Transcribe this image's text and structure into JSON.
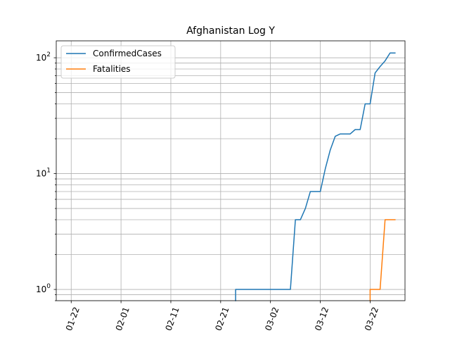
{
  "chart_data": {
    "type": "line",
    "title": "Afghanistan Log Y",
    "xlabel": "",
    "ylabel": "",
    "yscale": "log",
    "grid": "on (major and minor)",
    "legend_position": "upper-left",
    "x_ticks": [
      "01-22",
      "02-01",
      "02-11",
      "02-21",
      "03-02",
      "03-12",
      "03-22"
    ],
    "y_ticks": [
      {
        "value": 1,
        "label": "10^0"
      },
      {
        "value": 10,
        "label": "10^1"
      },
      {
        "value": 100,
        "label": "10^2"
      }
    ],
    "xlim": [
      "2020-01-19",
      "2020-03-29"
    ],
    "ylim": [
      0.8,
      140
    ],
    "series": [
      {
        "name": "ConfirmedCases",
        "color": "#1f77b4",
        "x": [
          "2020-02-24",
          "2020-02-25",
          "2020-02-26",
          "2020-02-27",
          "2020-02-28",
          "2020-02-29",
          "2020-03-01",
          "2020-03-02",
          "2020-03-03",
          "2020-03-04",
          "2020-03-05",
          "2020-03-06",
          "2020-03-07",
          "2020-03-08",
          "2020-03-09",
          "2020-03-10",
          "2020-03-11",
          "2020-03-12",
          "2020-03-13",
          "2020-03-14",
          "2020-03-15",
          "2020-03-16",
          "2020-03-17",
          "2020-03-18",
          "2020-03-19",
          "2020-03-20",
          "2020-03-21",
          "2020-03-22",
          "2020-03-23",
          "2020-03-24",
          "2020-03-25",
          "2020-03-26",
          "2020-03-27"
        ],
        "values": [
          1,
          1,
          1,
          1,
          1,
          1,
          1,
          1,
          1,
          1,
          1,
          1,
          4,
          4,
          5,
          7,
          7,
          7,
          11,
          16,
          21,
          22,
          22,
          22,
          24,
          24,
          40,
          40,
          74,
          84,
          94,
          110,
          110
        ]
      },
      {
        "name": "Fatalities",
        "color": "#ff7f0e",
        "x": [
          "2020-03-22",
          "2020-03-23",
          "2020-03-24",
          "2020-03-25",
          "2020-03-26",
          "2020-03-27"
        ],
        "values": [
          1,
          1,
          1,
          4,
          4,
          4
        ]
      }
    ]
  }
}
